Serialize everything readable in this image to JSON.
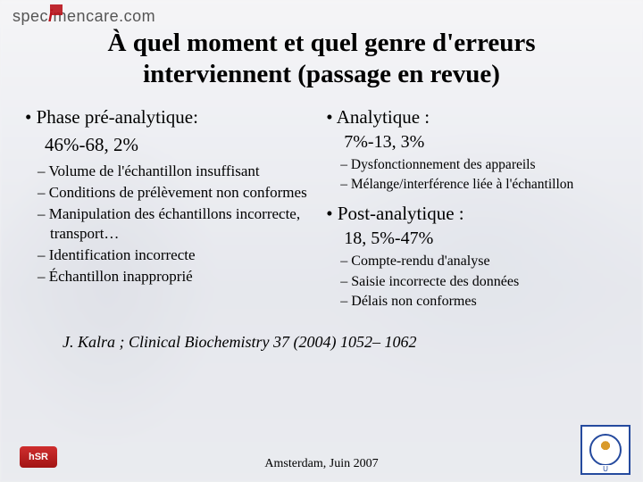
{
  "logo_top": {
    "pre": "spec",
    "mid": "i",
    "post": "mencare",
    "ext": ".com"
  },
  "title_line1": "À quel moment et quel genre d'erreurs",
  "title_line2": "interviennent (passage en revue)",
  "left": {
    "heading": "Phase pré-analytique:",
    "range": "46%-68, 2%",
    "items": [
      "Volume de l'échantillon insuffisant",
      "Conditions de prélèvement non conformes",
      "Manipulation des échantillons incorrecte, transport…",
      "Identification incorrecte",
      "Échantillon inapproprié"
    ]
  },
  "right": {
    "analytic_heading": "Analytique :",
    "analytic_range": "7%-13, 3%",
    "analytic_items": [
      "Dysfonctionnement des appareils",
      "Mélange/interférence liée à l'échantillon"
    ],
    "post_heading": "Post-analytique :",
    "post_range": "18, 5%-47%",
    "post_items": [
      "Compte-rendu d'analyse",
      "Saisie incorrecte des données",
      "Délais non conformes"
    ]
  },
  "citation": "J. Kalra ; Clinical Biochemistry 37 (2004) 1052– 1062",
  "footer": "Amsterdam, Juin 2007",
  "logo_bl": "hSR",
  "logo_br": "U"
}
